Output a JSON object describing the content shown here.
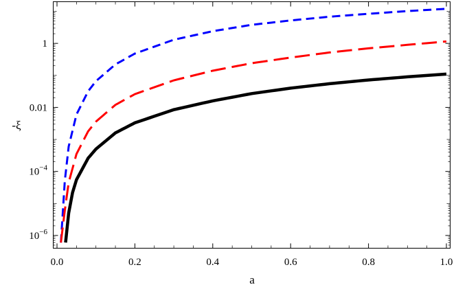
{
  "chart_data": {
    "type": "line",
    "title": "",
    "xlabel": "a",
    "ylabel": "-ξ",
    "xlim": [
      0,
      1
    ],
    "ylim": [
      4e-07,
      20
    ],
    "y_scale": "log",
    "grid": false,
    "x_ticks": [
      {
        "value": 0.0,
        "label": "0.0"
      },
      {
        "value": 0.2,
        "label": "0.2"
      },
      {
        "value": 0.4,
        "label": "0.4"
      },
      {
        "value": 0.6,
        "label": "0.6"
      },
      {
        "value": 0.8,
        "label": "0.8"
      },
      {
        "value": 1.0,
        "label": "1.0"
      }
    ],
    "y_ticks": [
      {
        "value": 1e-06,
        "base": "10",
        "exp": "−6",
        "label": ""
      },
      {
        "value": 0.0001,
        "base": "10",
        "exp": "−4",
        "label": ""
      },
      {
        "value": 0.01,
        "base": "",
        "exp": "",
        "label": "0.01"
      },
      {
        "value": 1,
        "base": "",
        "exp": "",
        "label": "1"
      }
    ],
    "series": [
      {
        "color": "#0000ff",
        "style": "short-dash",
        "width": 3,
        "x": [
          0.01,
          0.02,
          0.03,
          0.05,
          0.08,
          0.1,
          0.15,
          0.2,
          0.3,
          0.4,
          0.5,
          0.6,
          0.7,
          0.8,
          0.9,
          1.0
        ],
        "y": [
          6e-07,
          5e-05,
          0.0006,
          0.006,
          0.032,
          0.066,
          0.22,
          0.48,
          1.3,
          2.4,
          3.8,
          5.2,
          6.8,
          8.4,
          10.2,
          12
        ]
      },
      {
        "color": "#ff0000",
        "style": "long-dash",
        "width": 3,
        "x": [
          0.01,
          0.02,
          0.03,
          0.05,
          0.08,
          0.1,
          0.15,
          0.2,
          0.3,
          0.4,
          0.5,
          0.6,
          0.7,
          0.8,
          0.9,
          1.0
        ],
        "y": [
          6e-07,
          6e-06,
          4.5e-05,
          0.00035,
          0.0018,
          0.0036,
          0.012,
          0.026,
          0.07,
          0.14,
          0.24,
          0.36,
          0.52,
          0.7,
          0.9,
          1.15
        ]
      },
      {
        "color": "#000000",
        "style": "solid",
        "width": 4.5,
        "x": [
          0.022,
          0.03,
          0.04,
          0.05,
          0.08,
          0.1,
          0.15,
          0.2,
          0.3,
          0.4,
          0.5,
          0.6,
          0.7,
          0.8,
          0.9,
          1.0
        ],
        "y": [
          6e-07,
          5e-06,
          2.2e-05,
          5.5e-05,
          0.00026,
          0.0005,
          0.0016,
          0.0033,
          0.0085,
          0.016,
          0.027,
          0.04,
          0.055,
          0.072,
          0.09,
          0.11
        ]
      }
    ]
  }
}
